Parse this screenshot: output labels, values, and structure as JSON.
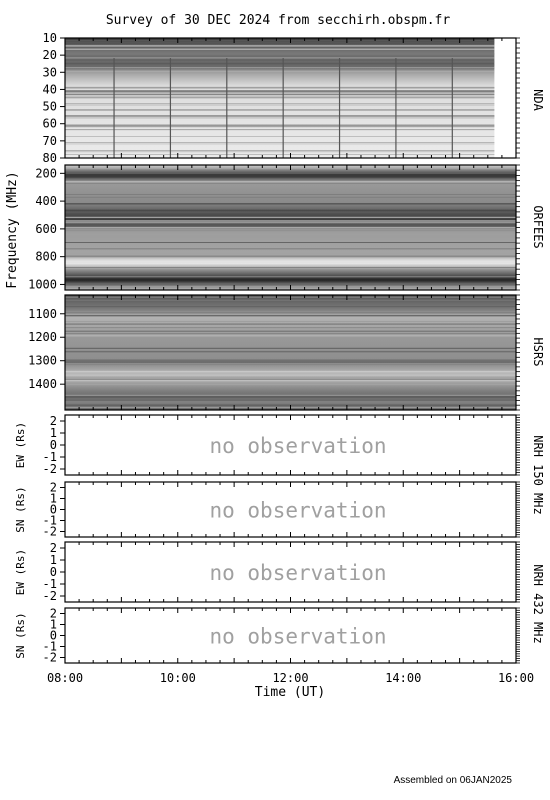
{
  "title": "Survey of 30 DEC 2024 from secchirh.obspm.fr",
  "footer": "Assembled on 06JAN2025",
  "chart_data": {
    "type": "heatmap",
    "x_axis": {
      "label": "Time (UT)",
      "range": [
        "08:00",
        "16:00"
      ],
      "tick_labels": [
        "08:00",
        "10:00",
        "12:00",
        "14:00",
        "16:00"
      ],
      "tick_values_hours": [
        8,
        10,
        12,
        14,
        16
      ],
      "minor_tick_minutes": 15
    },
    "shared_ylabel": "Frequency (MHz)",
    "panels": [
      {
        "id": "nda",
        "instrument": "NDA",
        "kind": "spectrogram",
        "ylim": [
          10,
          80
        ],
        "y_ticks": [
          10,
          20,
          30,
          40,
          50,
          60,
          70,
          80
        ],
        "data_time_range": [
          "08:00",
          "15:37"
        ],
        "vertical_lines_hours": [
          8.87,
          9.87,
          10.87,
          11.87,
          12.87,
          13.87,
          14.87
        ]
      },
      {
        "id": "orfees",
        "instrument": "ORFEES",
        "kind": "spectrogram",
        "ylim": [
          140,
          1040
        ],
        "y_ticks": [
          200,
          400,
          600,
          800,
          1000
        ]
      },
      {
        "id": "hsrs",
        "instrument": "HSRS",
        "kind": "spectrogram",
        "ylim": [
          1020,
          1510
        ],
        "y_ticks": [
          1100,
          1200,
          1300,
          1400
        ]
      },
      {
        "id": "nrh150_ew",
        "instrument": "NRH 150 MHz",
        "kind": "position",
        "ylabel": "EW (Rs)",
        "ylim": [
          -2.5,
          2.5
        ],
        "y_ticks": [
          2,
          1,
          0,
          -1,
          -2
        ],
        "message": "no observation"
      },
      {
        "id": "nrh150_sn",
        "instrument": "NRH 150 MHz",
        "kind": "position",
        "ylabel": "SN (Rs)",
        "ylim": [
          -2.5,
          2.5
        ],
        "y_ticks": [
          2,
          1,
          0,
          -1,
          -2
        ],
        "message": "no observation"
      },
      {
        "id": "nrh432_ew",
        "instrument": "NRH 432 MHz",
        "kind": "position",
        "ylabel": "EW (Rs)",
        "ylim": [
          -2.5,
          2.5
        ],
        "y_ticks": [
          2,
          1,
          0,
          -1,
          -2
        ],
        "message": "no observation"
      },
      {
        "id": "nrh432_sn",
        "instrument": "NRH 432 MHz",
        "kind": "position",
        "ylabel": "SN (Rs)",
        "ylim": [
          -2.5,
          2.5
        ],
        "y_ticks": [
          2,
          1,
          0,
          -1,
          -2
        ],
        "message": "no observation"
      }
    ]
  }
}
